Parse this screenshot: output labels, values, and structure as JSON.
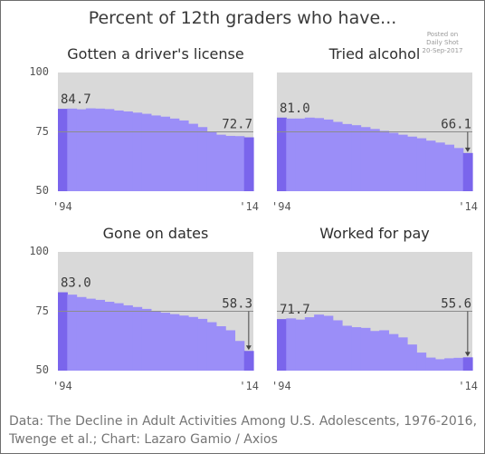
{
  "title": "Percent of 12th graders who have...",
  "watermark": {
    "line1": "Posted on",
    "line2": "Daily Shot",
    "line3": "20-Sep-2017"
  },
  "source_note": "Data: The Decline in Adult Activities Among U.S. Adolescents, 1976-2016, Twenge et al.; Chart: Lazaro Gamio / Axios",
  "colors": {
    "bar": "#9b8ef8",
    "bar_edge": "#7a65ec",
    "plot_bg": "#d9d9d9",
    "ref_line": "#8c8c8c"
  },
  "chart_data": [
    {
      "type": "bar",
      "title": "Gotten a driver's license",
      "x_labels": [
        "'94",
        "'14"
      ],
      "x": [
        1994,
        1995,
        1996,
        1997,
        1998,
        1999,
        2000,
        2001,
        2002,
        2003,
        2004,
        2005,
        2006,
        2007,
        2008,
        2009,
        2010,
        2011,
        2012,
        2013,
        2014
      ],
      "values": [
        84.7,
        84.8,
        84.5,
        84.9,
        84.8,
        84.6,
        84.0,
        83.6,
        83.1,
        82.6,
        81.9,
        81.4,
        80.6,
        79.8,
        78.4,
        77.0,
        75.2,
        73.8,
        73.3,
        73.2,
        72.7
      ],
      "start_label": "84.7",
      "end_label": "72.7",
      "ylim": [
        50,
        100
      ],
      "yticks": [
        50,
        75,
        100
      ],
      "reference_line": 75
    },
    {
      "type": "bar",
      "title": "Tried alcohol",
      "x_labels": [
        "'94",
        "'14"
      ],
      "x": [
        1994,
        1995,
        1996,
        1997,
        1998,
        1999,
        2000,
        2001,
        2002,
        2003,
        2004,
        2005,
        2006,
        2007,
        2008,
        2009,
        2010,
        2011,
        2012,
        2013,
        2014
      ],
      "values": [
        81.0,
        80.6,
        80.6,
        81.0,
        80.8,
        80.2,
        79.2,
        78.3,
        77.8,
        77.0,
        76.2,
        75.4,
        74.6,
        73.8,
        73.0,
        72.3,
        71.3,
        70.5,
        69.6,
        68.2,
        66.1
      ],
      "start_label": "81.0",
      "end_label": "66.1",
      "ylim": [
        50,
        100
      ],
      "yticks": [
        50,
        75,
        100
      ],
      "reference_line": 75
    },
    {
      "type": "bar",
      "title": "Gone on dates",
      "x_labels": [
        "'94",
        "'14"
      ],
      "x": [
        1994,
        1995,
        1996,
        1997,
        1998,
        1999,
        2000,
        2001,
        2002,
        2003,
        2004,
        2005,
        2006,
        2007,
        2008,
        2009,
        2010,
        2011,
        2012,
        2013,
        2014
      ],
      "values": [
        83.0,
        82.0,
        81.0,
        80.3,
        79.8,
        79.0,
        78.4,
        77.5,
        76.8,
        76.0,
        75.2,
        74.4,
        73.8,
        73.2,
        72.6,
        71.8,
        70.4,
        68.7,
        67.0,
        62.5,
        58.3
      ],
      "start_label": "83.0",
      "end_label": "58.3",
      "ylim": [
        50,
        100
      ],
      "yticks": [
        50,
        75,
        100
      ],
      "reference_line": 75
    },
    {
      "type": "bar",
      "title": "Worked for pay",
      "x_labels": [
        "'94",
        "'14"
      ],
      "x": [
        1994,
        1995,
        1996,
        1997,
        1998,
        1999,
        2000,
        2001,
        2002,
        2003,
        2004,
        2005,
        2006,
        2007,
        2008,
        2009,
        2010,
        2011,
        2012,
        2013,
        2014
      ],
      "values": [
        71.7,
        72.0,
        71.5,
        72.5,
        73.6,
        73.1,
        71.2,
        68.9,
        68.3,
        68.0,
        66.7,
        67.0,
        65.4,
        64.0,
        61.0,
        57.6,
        55.5,
        54.8,
        55.2,
        55.4,
        55.6
      ],
      "start_label": "71.7",
      "end_label": "55.6",
      "ylim": [
        50,
        100
      ],
      "yticks": [
        50,
        75,
        100
      ],
      "reference_line": 75
    }
  ]
}
